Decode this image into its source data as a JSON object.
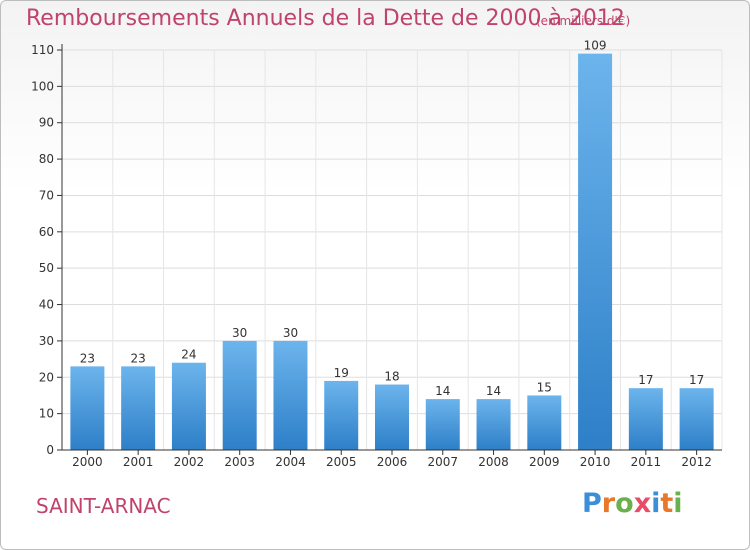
{
  "title": "Remboursements Annuels de la Dette de 2000 à 2012",
  "subtitle": "(en milliers d'€)",
  "commune": "SAINT-ARNAC",
  "logo": {
    "text": "Proxiti",
    "letters": [
      "P",
      "r",
      "o",
      "x",
      "i",
      "t",
      "i"
    ],
    "colors": [
      "#3a8fd8",
      "#e8782a",
      "#6ab04c",
      "#e84c6a",
      "#3a8fd8",
      "#e8782a",
      "#6ab04c"
    ]
  },
  "colors": {
    "bar": "#3b8fd6",
    "bar_light": "#6cb4ec",
    "axis": "#333333",
    "grid": "#dddddd",
    "title": "#c0436b"
  },
  "chart_data": {
    "type": "bar",
    "title": "Remboursements Annuels de la Dette de 2000 à 2012",
    "subtitle": "(en milliers d'€)",
    "xlabel": "",
    "ylabel": "",
    "categories": [
      "2000",
      "2001",
      "2002",
      "2003",
      "2004",
      "2005",
      "2006",
      "2007",
      "2008",
      "2009",
      "2010",
      "2011",
      "2012"
    ],
    "values": [
      23,
      23,
      24,
      30,
      30,
      19,
      18,
      14,
      14,
      15,
      109,
      17,
      17
    ],
    "ylim": [
      0,
      110
    ],
    "yticks": [
      0,
      10,
      20,
      30,
      40,
      50,
      60,
      70,
      80,
      90,
      100,
      110
    ],
    "grid": true,
    "data_labels": true
  }
}
